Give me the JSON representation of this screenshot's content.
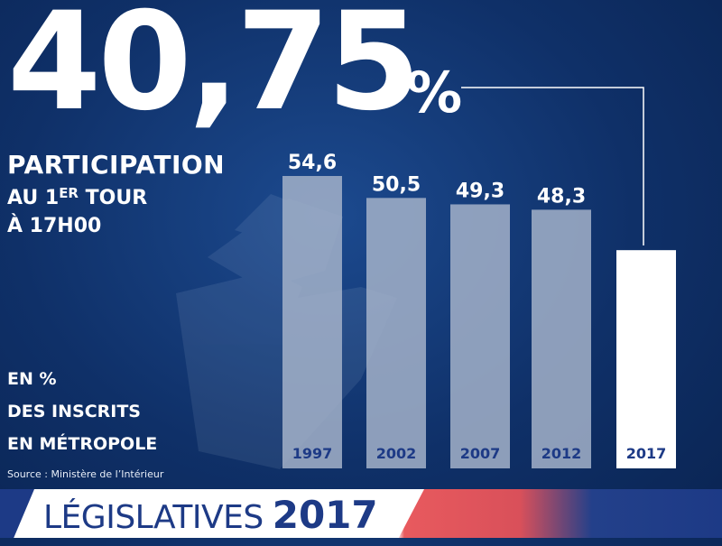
{
  "headline": {
    "value": "40,75",
    "percent_sign": "%",
    "line1": "PARTICIPATION",
    "line2_prefix": "AU 1",
    "line2_sup": "ER",
    "line2_suffix": " TOUR",
    "line3": "À 17H00"
  },
  "unit_note": [
    "EN %",
    "DES INSCRITS",
    "EN MÉTROPOLE"
  ],
  "source": "Source : Ministère de l’Intérieur",
  "footer": {
    "word": "LÉGISLATIVES",
    "year": "2017"
  },
  "colors": {
    "background": "#0f3068",
    "past_bar": "#a3b1c9",
    "current_bar": "#ffffff",
    "label_on_past_bar": "#1d3a86",
    "label_on_current_bar": "#1d3a86"
  },
  "chart_data": {
    "type": "bar",
    "categories": [
      "1997",
      "2002",
      "2007",
      "2012",
      "2017"
    ],
    "values": [
      54.6,
      50.5,
      49.3,
      48.3,
      40.75
    ],
    "value_labels": [
      "54,6",
      "50,5",
      "49,3",
      "48,3",
      ""
    ],
    "highlighted_category": "2017",
    "title": "",
    "xlabel": "",
    "ylabel": "",
    "grid": false
  }
}
